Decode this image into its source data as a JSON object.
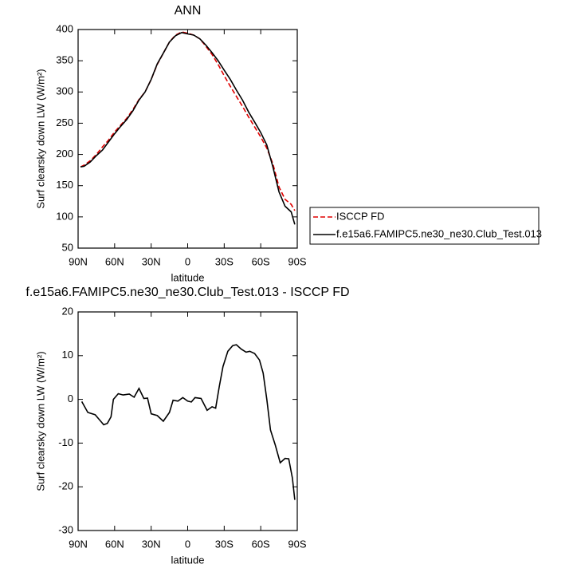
{
  "chart_data": [
    {
      "type": "line",
      "title": "ANN",
      "xlabel": "latitude",
      "ylabel": "Surf clearsky down LW (W/m²)",
      "x": [
        88,
        85,
        80,
        75,
        70,
        65,
        60,
        55,
        50,
        45,
        40,
        35,
        30,
        25,
        20,
        15,
        10,
        5,
        0,
        -5,
        -10,
        -15,
        -20,
        -25,
        -30,
        -35,
        -40,
        -45,
        -50,
        -55,
        -60,
        -65,
        -70,
        -75,
        -80,
        -85,
        -88
      ],
      "series": [
        {
          "name": "ISCCP FD",
          "color": "#e00000",
          "line_style": "dashed",
          "values": [
            180,
            183,
            190,
            200,
            212,
            223,
            236,
            247,
            258,
            272,
            288,
            300,
            320,
            344,
            362,
            380,
            391,
            396,
            394,
            391,
            385,
            373,
            360,
            344,
            326,
            309,
            293,
            277,
            260,
            244,
            228,
            210,
            185,
            148,
            128,
            120,
            110
          ]
        },
        {
          "name": "f.e15a6.FAMIPC5.ne30_ne30.Club_Test.013",
          "color": "#000000",
          "line_style": "solid",
          "values": [
            180,
            181,
            188,
            198,
            207,
            220,
            233,
            245,
            256,
            270,
            287,
            300,
            320,
            345,
            362,
            380,
            390,
            395,
            393,
            391,
            385,
            375,
            363,
            350,
            335,
            320,
            303,
            287,
            268,
            252,
            235,
            215,
            180,
            140,
            117,
            108,
            88
          ]
        }
      ],
      "xlim": [
        90,
        -90
      ],
      "xticks": [
        {
          "value": 90,
          "label": "90N"
        },
        {
          "value": 60,
          "label": "60N"
        },
        {
          "value": 30,
          "label": "30N"
        },
        0,
        {
          "value": -30,
          "label": "30S"
        },
        {
          "value": -60,
          "label": "60S"
        },
        {
          "value": -90,
          "label": "90S"
        }
      ],
      "ylim": [
        50,
        400
      ],
      "yticks": [
        50,
        100,
        150,
        200,
        250,
        300,
        350,
        400
      ],
      "legend": "right"
    },
    {
      "type": "line",
      "title": "f.e15a6.FAMIPC5.ne30_ne30.Club_Test.013 - ISCCP FD",
      "xlabel": "latitude",
      "ylabel": "Surf clearsky down LW (W/m²)",
      "x": [
        87,
        82,
        76,
        69,
        66,
        63,
        61,
        57,
        53,
        48,
        44,
        40,
        36,
        33,
        30,
        25,
        20,
        15,
        12,
        8,
        4,
        0,
        -3,
        -6,
        -11,
        -16,
        -20,
        -23,
        -26,
        -29,
        -33,
        -37,
        -40,
        -44,
        -48,
        -51,
        -55,
        -59,
        -62,
        -65,
        -68,
        -72,
        -76,
        -80,
        -83,
        -86,
        -88
      ],
      "series": [
        {
          "color": "#000000",
          "line_style": "solid",
          "values": [
            -0.5,
            -3,
            -3.5,
            -5.8,
            -5.5,
            -4,
            0,
            1.3,
            1,
            1.2,
            0.5,
            2.5,
            0.2,
            0.3,
            -3.3,
            -3.7,
            -5,
            -3,
            -0.2,
            -0.4,
            0.4,
            -0.4,
            -0.6,
            0.4,
            0.2,
            -2.5,
            -1.7,
            -2,
            3,
            7.5,
            11,
            12.3,
            12.5,
            11.5,
            10.8,
            11,
            10.5,
            9,
            6,
            0,
            -7,
            -10.5,
            -14.5,
            -13.5,
            -13.6,
            -18,
            -23
          ]
        }
      ],
      "xlim": [
        90,
        -90
      ],
      "xticks": [
        {
          "value": 90,
          "label": "90N"
        },
        {
          "value": 60,
          "label": "60N"
        },
        {
          "value": 30,
          "label": "30N"
        },
        0,
        {
          "value": -30,
          "label": "30S"
        },
        {
          "value": -60,
          "label": "60S"
        },
        {
          "value": -90,
          "label": "90S"
        }
      ],
      "ylim": [
        -30,
        20
      ],
      "yticks": [
        -30,
        -20,
        -10,
        0,
        10,
        20
      ]
    }
  ]
}
